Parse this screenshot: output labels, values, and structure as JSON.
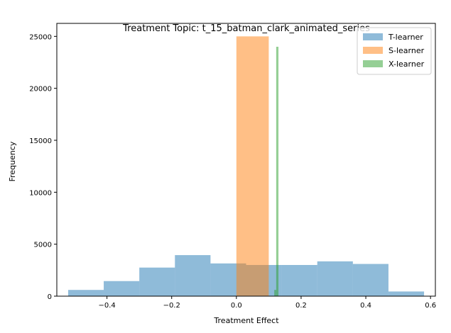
{
  "chart_data": {
    "type": "histogram",
    "title": "Treatment Topic: t_15_batman_clark_animated_series",
    "xlabel": "Treatment Effect",
    "ylabel": "Frequency",
    "xlim": [
      -0.555,
      0.615
    ],
    "ylim": [
      0,
      26250
    ],
    "xticks": [
      -0.4,
      -0.2,
      0.0,
      0.2,
      0.4,
      0.6
    ],
    "xtick_labels": [
      "−0.4",
      "−0.2",
      "0.0",
      "0.2",
      "0.4",
      "0.6"
    ],
    "yticks": [
      0,
      5000,
      10000,
      15000,
      20000,
      25000
    ],
    "ytick_labels": [
      "0",
      "5000",
      "10000",
      "15000",
      "20000",
      "25000"
    ],
    "legend_position": "top-right",
    "grid": false,
    "series": [
      {
        "name": "T-learner",
        "color": "#1f77b4",
        "alpha": 0.5,
        "bins": [
          {
            "x0": -0.52,
            "x1": -0.41,
            "count": 600
          },
          {
            "x0": -0.41,
            "x1": -0.3,
            "count": 1450
          },
          {
            "x0": -0.3,
            "x1": -0.19,
            "count": 2750
          },
          {
            "x0": -0.19,
            "x1": -0.08,
            "count": 3950
          },
          {
            "x0": -0.08,
            "x1": 0.03,
            "count": 3150
          },
          {
            "x0": 0.03,
            "x1": 0.14,
            "count": 3000
          },
          {
            "x0": 0.14,
            "x1": 0.25,
            "count": 3000
          },
          {
            "x0": 0.25,
            "x1": 0.36,
            "count": 3350
          },
          {
            "x0": 0.36,
            "x1": 0.47,
            "count": 3100
          },
          {
            "x0": 0.47,
            "x1": 0.58,
            "count": 450
          }
        ]
      },
      {
        "name": "S-learner",
        "color": "#ff7f0e",
        "alpha": 0.5,
        "bins": [
          {
            "x0": 0.0,
            "x1": 0.1,
            "count": 25000
          }
        ]
      },
      {
        "name": "X-learner",
        "color": "#2ca02c",
        "alpha": 0.5,
        "bins": [
          {
            "x0": 0.117,
            "x1": 0.123,
            "count": 600
          },
          {
            "x0": 0.123,
            "x1": 0.13,
            "count": 24000
          }
        ]
      }
    ]
  }
}
